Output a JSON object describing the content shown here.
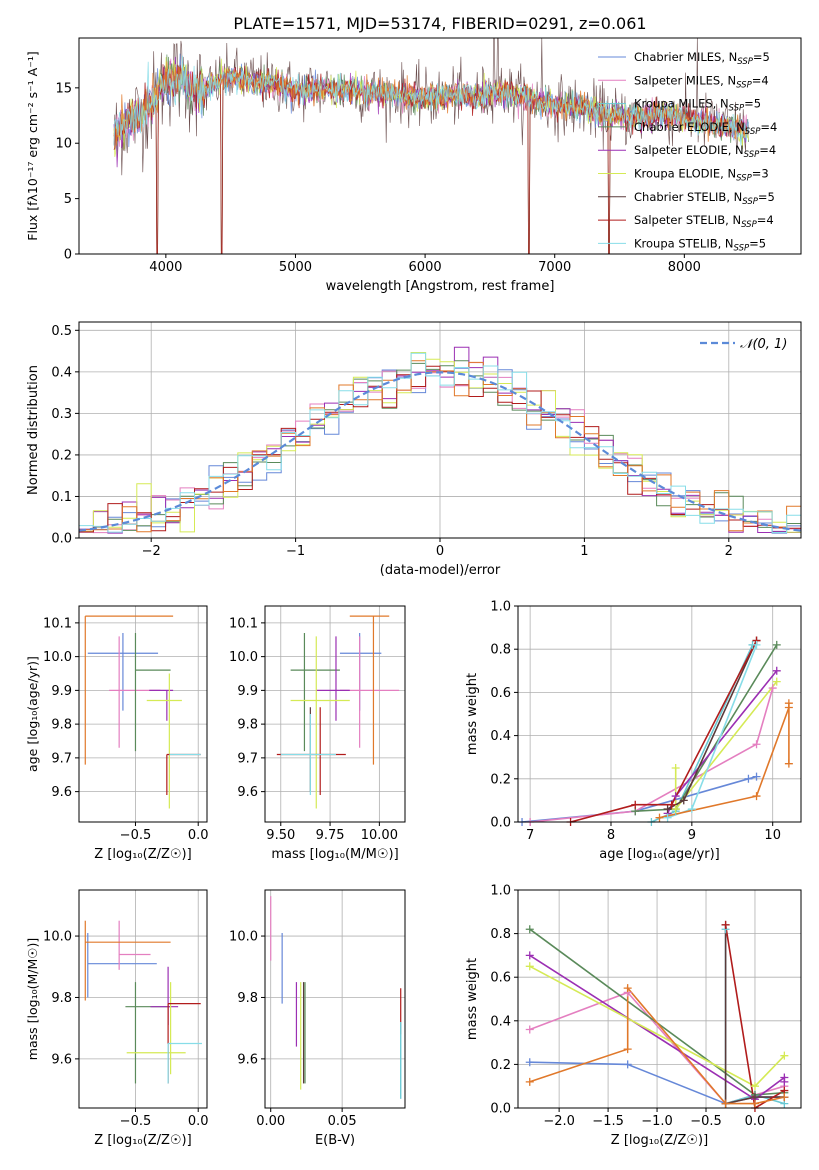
{
  "figure_title": "PLATE=1571, MJD=53174, FIBERID=0291, z=0.061",
  "colors": [
    "#6688d8",
    "#e47fc0",
    "#69c8d3",
    "#5a8a5a",
    "#9b2fb3",
    "#d5ea55",
    "#5a3a3a",
    "#b11c1c",
    "#87dde8"
  ],
  "chart_data": [
    {
      "id": "spectrum",
      "type": "line",
      "xlabel": "wavelength [Angstrom, rest frame]",
      "ylabel": "Flux [fλ10⁻¹⁷ erg cm⁻² s⁻¹ A⁻¹]",
      "xlim": [
        3330,
        8900
      ],
      "ylim": [
        0,
        19.5
      ],
      "xticks": [
        4000,
        5000,
        6000,
        7000,
        8000
      ],
      "yticks": [
        0,
        5,
        10,
        15
      ],
      "grid": false,
      "legend": "top-right",
      "legend_entries": [
        "Chabrier MILES, N_SSP=5",
        "Salpeter MILES, N_SSP=4",
        "Kroupa MILES, N_SSP=5",
        "Chabrier ELODIE, N_SSP=4",
        "Salpeter ELODIE, N_SSP=4",
        "Kroupa ELODIE, N_SSP=3",
        "Chabrier STELIB, N_SSP=5",
        "Salpeter STELIB, N_SSP=4",
        "Kroupa STELIB, N_SSP=5"
      ],
      "legend_labels": [
        {
          "pre": "Chabrier MILES, N",
          "sub": "SSP",
          "post": "=5"
        },
        {
          "pre": "Salpeter MILES, N",
          "sub": "SSP",
          "post": "=4"
        },
        {
          "pre": "Kroupa MILES, N",
          "sub": "SSP",
          "post": "=5"
        },
        {
          "pre": "Chabrier ELODIE, N",
          "sub": "SSP",
          "post": "=4"
        },
        {
          "pre": "Salpeter ELODIE, N",
          "sub": "SSP",
          "post": "=4"
        },
        {
          "pre": "Kroupa ELODIE, N",
          "sub": "SSP",
          "post": "=3"
        },
        {
          "pre": "Chabrier STELIB, N",
          "sub": "SSP",
          "post": "=5"
        },
        {
          "pre": "Salpeter STELIB, N",
          "sub": "SSP",
          "post": "=4"
        },
        {
          "pre": "Kroupa STELIB, N",
          "sub": "SSP",
          "post": "=5"
        }
      ],
      "continuum": [
        [
          3600,
          10.5
        ],
        [
          3700,
          12.0
        ],
        [
          3800,
          12.5
        ],
        [
          3900,
          14.0
        ],
        [
          4000,
          15.5
        ],
        [
          4100,
          16.0
        ],
        [
          4200,
          15.0
        ],
        [
          4300,
          14.8
        ],
        [
          4400,
          15.5
        ],
        [
          4500,
          16.0
        ],
        [
          4600,
          15.8
        ],
        [
          4700,
          15.5
        ],
        [
          4800,
          15.4
        ],
        [
          4900,
          15.2
        ],
        [
          5000,
          14.8
        ],
        [
          5200,
          14.9
        ],
        [
          5400,
          14.8
        ],
        [
          5600,
          14.5
        ],
        [
          5800,
          14.5
        ],
        [
          6000,
          14.0
        ],
        [
          6200,
          14.3
        ],
        [
          6400,
          14.2
        ],
        [
          6600,
          14.7
        ],
        [
          6800,
          14.0
        ],
        [
          7000,
          13.5
        ],
        [
          7200,
          13.2
        ],
        [
          7400,
          12.6
        ],
        [
          7600,
          12.3
        ],
        [
          7800,
          12.7
        ],
        [
          8000,
          12.2
        ],
        [
          8200,
          11.8
        ],
        [
          8400,
          11.3
        ],
        [
          8500,
          11.1
        ]
      ],
      "dips": [
        [
          3934,
          0
        ],
        [
          4430,
          0
        ],
        [
          6800,
          0
        ],
        [
          7420,
          0
        ]
      ],
      "spikes": [
        [
          6530,
          19.5
        ],
        [
          6560,
          19.5
        ],
        [
          6900,
          19.5
        ],
        [
          8100,
          19.5
        ]
      ]
    },
    {
      "id": "residuals",
      "type": "step",
      "xlabel": "(data-model)/error",
      "ylabel": "Normed distribution",
      "xlim": [
        -2.5,
        2.5
      ],
      "ylim": [
        0,
        0.52
      ],
      "xticks": [
        -2,
        -1,
        0,
        1,
        2
      ],
      "xtick_labels": [
        "−2",
        "−1",
        "0",
        "1",
        "2"
      ],
      "yticks": [
        0.0,
        0.1,
        0.2,
        0.3,
        0.4,
        0.5
      ],
      "ytick_labels": [
        "0.0",
        "0.1",
        "0.2",
        "0.3",
        "0.4",
        "0.5"
      ],
      "grid": true,
      "legend": "top-right",
      "legend_entries": [
        "𝒩(0, 1)"
      ],
      "bin_width": 0.1,
      "nbins": 50
    },
    {
      "id": "age_vs_Z",
      "type": "errorbar",
      "xlabel": "Z [log₁₀(Z/Z☉)]",
      "ylabel": "age  [log₁₀(age/yr)]",
      "xlim": [
        -0.95,
        0.07
      ],
      "ylim": [
        9.51,
        10.15
      ],
      "xticks": [
        -0.5,
        0.0
      ],
      "xtick_labels": [
        "−0.5",
        "0.0"
      ],
      "yticks": [
        9.6,
        9.7,
        9.8,
        9.9,
        10.0,
        10.1
      ],
      "ytick_labels": [
        "9.6",
        "9.7",
        "9.8",
        "9.9",
        "10.0",
        "10.1"
      ],
      "grid": true,
      "points": [
        {
          "c": 0,
          "x": -0.6,
          "xe": [
            -0.88,
            -0.32
          ],
          "y": 10.01,
          "ye": [
            9.84,
            10.07
          ]
        },
        {
          "c": 1,
          "x": -0.63,
          "xe": [
            -0.71,
            -0.3
          ],
          "y": 9.9,
          "ye": [
            9.73,
            10.06
          ]
        },
        {
          "c": 3,
          "x": -0.5,
          "xe": [
            -0.5,
            -0.22
          ],
          "y": 9.96,
          "ye": [
            9.72,
            10.07
          ]
        },
        {
          "c": 4,
          "x": -0.25,
          "xe": [
            -0.39,
            -0.2
          ],
          "y": 9.9,
          "ye": [
            9.81,
            9.9
          ]
        },
        {
          "c": 5,
          "x": -0.23,
          "xe": [
            -0.41,
            -0.13
          ],
          "y": 9.87,
          "ye": [
            9.55,
            9.95
          ]
        },
        {
          "c": 7,
          "x": -0.25,
          "xe": [
            -0.25,
            0.02
          ],
          "y": 9.71,
          "ye": [
            9.59,
            9.71
          ]
        },
        {
          "c": 8,
          "x": -0.23,
          "xe": [
            -0.23,
            0.02
          ],
          "y": 9.71,
          "ye": [
            9.71,
            9.71
          ]
        },
        {
          "c": 10,
          "x": -0.9,
          "xe": [
            -0.9,
            -0.2
          ],
          "y": 10.12,
          "ye": [
            9.68,
            10.12
          ]
        }
      ]
    },
    {
      "id": "age_vs_mass",
      "type": "errorbar",
      "xlabel": "mass [log₁₀(M/M☉)]",
      "ylabel": "",
      "xlim": [
        9.42,
        10.13
      ],
      "ylim": [
        9.51,
        10.15
      ],
      "xticks": [
        9.5,
        9.75,
        10.0
      ],
      "xtick_labels": [
        "9.50",
        "9.75",
        "10.00"
      ],
      "yticks": [
        9.6,
        9.7,
        9.8,
        9.9,
        10.0,
        10.1
      ],
      "ytick_labels": [
        "9.6",
        "9.7",
        "9.8",
        "9.9",
        "10.0",
        "10.1"
      ],
      "grid": true,
      "points": [
        {
          "c": 0,
          "x": 9.9,
          "xe": [
            9.8,
            10.01
          ],
          "y": 10.01,
          "ye": [
            9.84,
            10.07
          ]
        },
        {
          "c": 1,
          "x": 9.9,
          "xe": [
            9.8,
            10.1
          ],
          "y": 9.9,
          "ye": [
            9.73,
            10.06
          ]
        },
        {
          "c": 3,
          "x": 9.62,
          "xe": [
            9.55,
            9.8
          ],
          "y": 9.96,
          "ye": [
            9.72,
            10.07
          ]
        },
        {
          "c": 4,
          "x": 9.78,
          "xe": [
            9.68,
            9.85
          ],
          "y": 9.9,
          "ye": [
            9.81,
            10.06
          ]
        },
        {
          "c": 5,
          "x": 9.68,
          "xe": [
            9.55,
            9.85
          ],
          "y": 9.87,
          "ye": [
            9.55,
            10.06
          ]
        },
        {
          "c": 6,
          "x": 9.65,
          "xe": [
            9.65,
            9.65
          ],
          "y": 9.7,
          "ye": [
            9.6,
            9.85
          ]
        },
        {
          "c": 7,
          "x": 9.7,
          "xe": [
            9.48,
            9.83
          ],
          "y": 9.71,
          "ye": [
            9.59,
            9.85
          ]
        },
        {
          "c": 8,
          "x": 9.65,
          "xe": [
            9.5,
            9.78
          ],
          "y": 9.71,
          "ye": [
            9.59,
            9.83
          ]
        },
        {
          "c": 10,
          "x": 9.97,
          "xe": [
            9.85,
            10.05
          ],
          "y": 10.12,
          "ye": [
            9.68,
            10.12
          ]
        }
      ]
    },
    {
      "id": "mass_weight_vs_age",
      "type": "line",
      "xlabel": "age  [log₁₀(age/yr)]",
      "ylabel": "mass weight",
      "xlim": [
        6.85,
        10.35
      ],
      "ylim": [
        0,
        1.0
      ],
      "xticks": [
        7,
        8,
        9,
        10
      ],
      "yticks": [
        0.0,
        0.2,
        0.4,
        0.6,
        0.8,
        1.0
      ],
      "ytick_labels": [
        "0.0",
        "0.2",
        "0.4",
        "0.6",
        "0.8",
        "1.0"
      ],
      "grid": true,
      "series": [
        {
          "c": 0,
          "x": [
            6.9,
            8.3,
            9.7,
            9.8
          ],
          "y": [
            0.0,
            0.05,
            0.2,
            0.21
          ]
        },
        {
          "c": 1,
          "x": 7.0,
          "x_list": [
            7.0,
            8.3,
            9.8,
            10.0
          ],
          "y": [
            0.0,
            0.05,
            0.36,
            0.62
          ]
        },
        {
          "c": 2,
          "x": [
            8.5,
            8.8,
            9.75
          ],
          "y": [
            0.0,
            0.05,
            0.82
          ]
        },
        {
          "c": 3,
          "x": [
            8.3,
            8.8,
            10.05
          ],
          "y": [
            0.05,
            0.06,
            0.82
          ]
        },
        {
          "c": 4,
          "x": [
            8.7,
            8.8,
            10.05
          ],
          "y": [
            0.04,
            0.12,
            0.7
          ]
        },
        {
          "c": 5,
          "x": [
            8.8,
            8.8,
            10.05
          ],
          "y": [
            0.25,
            0.06,
            0.65
          ]
        },
        {
          "c": 6,
          "x": [
            8.7,
            8.9,
            9.8
          ],
          "y": [
            0.06,
            0.1,
            0.84
          ]
        },
        {
          "c": 7,
          "x": [
            7.5,
            8.3,
            8.75,
            9.8
          ],
          "y": [
            0.0,
            0.08,
            0.08,
            0.84
          ]
        },
        {
          "c": 8,
          "x": [
            8.7,
            9.0,
            9.8
          ],
          "y": [
            0.02,
            0.06,
            0.82
          ]
        },
        {
          "c": 10,
          "x": [
            8.6,
            9.8,
            10.2,
            10.2,
            10.2
          ],
          "y": [
            0.02,
            0.12,
            0.53,
            0.27,
            0.55
          ]
        }
      ]
    },
    {
      "id": "mass_vs_Z",
      "type": "errorbar",
      "xlabel": "Z [log₁₀(Z/Z☉)]",
      "ylabel": "mass [log₁₀(M/M☉)]",
      "xlim": [
        -0.95,
        0.07
      ],
      "ylim": [
        9.44,
        10.15
      ],
      "xticks": [
        -0.5,
        0.0
      ],
      "xtick_labels": [
        "−0.5",
        "0.0"
      ],
      "yticks": [
        9.6,
        9.8,
        10.0
      ],
      "ytick_labels": [
        "9.6",
        "9.8",
        "10.0"
      ],
      "grid": true,
      "points": [
        {
          "c": 0,
          "x": -0.88,
          "xe": [
            -0.88,
            -0.33
          ],
          "y": 9.91,
          "ye": [
            9.8,
            10.01
          ]
        },
        {
          "c": 1,
          "x": -0.63,
          "xe": [
            -0.63,
            -0.38
          ],
          "y": 9.94,
          "ye": [
            9.89,
            10.05
          ]
        },
        {
          "c": 3,
          "x": -0.5,
          "xe": [
            -0.58,
            -0.22
          ],
          "y": 9.77,
          "ye": [
            9.52,
            9.85
          ]
        },
        {
          "c": 4,
          "x": -0.24,
          "xe": [
            -0.38,
            -0.16
          ],
          "y": 9.77,
          "ye": [
            9.71,
            9.9
          ]
        },
        {
          "c": 5,
          "x": -0.22,
          "xe": [
            -0.57,
            -0.1
          ],
          "y": 9.62,
          "ye": [
            9.55,
            9.85
          ]
        },
        {
          "c": 7,
          "x": -0.24,
          "xe": [
            -0.24,
            0.02
          ],
          "y": 9.78,
          "ye": [
            9.52,
            9.78
          ]
        },
        {
          "c": 8,
          "x": -0.24,
          "xe": [
            -0.24,
            0.03
          ],
          "y": 9.65,
          "ye": [
            9.52,
            9.65
          ]
        },
        {
          "c": 10,
          "x": -0.9,
          "xe": [
            -0.9,
            -0.22
          ],
          "y": 9.98,
          "ye": [
            9.79,
            10.05
          ]
        }
      ]
    },
    {
      "id": "mass_vs_ebv",
      "type": "errorbar",
      "xlabel": "E(B-V)",
      "ylabel": "",
      "xlim": [
        -0.004,
        0.094
      ],
      "ylim": [
        9.44,
        10.15
      ],
      "xticks": [
        0.0,
        0.05
      ],
      "xtick_labels": [
        "0.00",
        "0.05"
      ],
      "yticks": [
        9.6,
        9.8,
        10.0
      ],
      "ytick_labels": [
        "9.6",
        "9.8",
        "10.0"
      ],
      "grid": true,
      "points": [
        {
          "c": 1,
          "x": 0.0,
          "y": 10.05,
          "ye": [
            9.92,
            10.13
          ]
        },
        {
          "c": 0,
          "x": 0.008,
          "y": 9.9,
          "ye": [
            9.78,
            10.01
          ]
        },
        {
          "c": 4,
          "x": 0.018,
          "y": 9.75,
          "ye": [
            9.64,
            9.85
          ]
        },
        {
          "c": 5,
          "x": 0.021,
          "y": 9.65,
          "ye": [
            9.5,
            9.85
          ]
        },
        {
          "c": 6,
          "x": 0.023,
          "y": 9.68,
          "ye": [
            9.52,
            9.85
          ]
        },
        {
          "c": 3,
          "x": 0.024,
          "y": 9.7,
          "ye": [
            9.52,
            9.85
          ]
        },
        {
          "c": 7,
          "x": 0.091,
          "y": 9.78,
          "ye": [
            9.68,
            9.83
          ]
        },
        {
          "c": 8,
          "x": 0.091,
          "y": 9.6,
          "ye": [
            9.47,
            9.72
          ]
        },
        {
          "c": 2,
          "x": 0.091,
          "y": 9.6,
          "ye": [
            9.47,
            9.72
          ]
        }
      ]
    },
    {
      "id": "mass_weight_vs_Z",
      "type": "line",
      "xlabel": "Z [log₁₀(Z/Z☉)]",
      "ylabel": "mass weight",
      "xlim": [
        -2.42,
        0.47
      ],
      "ylim": [
        0,
        1.0
      ],
      "xticks": [
        -2.0,
        -1.5,
        -1.0,
        -0.5,
        0.0
      ],
      "xtick_labels": [
        "−2.0",
        "−1.5",
        "−1.0",
        "−0.5",
        "0.0"
      ],
      "yticks": [
        0.0,
        0.2,
        0.4,
        0.6,
        0.8,
        1.0
      ],
      "ytick_labels": [
        "0.0",
        "0.2",
        "0.4",
        "0.6",
        "0.8",
        "1.0"
      ],
      "grid": true,
      "series": [
        {
          "c": 0,
          "x": [
            -2.3,
            -1.3,
            -0.3,
            0.0,
            0.3
          ],
          "y": [
            0.21,
            0.2,
            0.02,
            0.05,
            0.05
          ]
        },
        {
          "c": 1,
          "x": [
            -2.3,
            -1.3,
            -0.3,
            0.3
          ],
          "y": [
            0.36,
            0.53,
            0.02,
            0.1
          ]
        },
        {
          "c": 2,
          "x": [
            -0.3,
            -0.3,
            0.0,
            0.3
          ],
          "y": [
            0.82,
            0.02,
            0.06,
            0.02
          ]
        },
        {
          "c": 3,
          "x": [
            -2.3,
            0.0,
            0.3
          ],
          "y": [
            0.82,
            0.06,
            0.07
          ]
        },
        {
          "c": 4,
          "x": [
            -2.3,
            0.0,
            0.3,
            0.3
          ],
          "y": [
            0.7,
            0.04,
            0.14,
            0.12
          ]
        },
        {
          "c": 5,
          "x": [
            -2.3,
            0.0,
            0.3
          ],
          "y": [
            0.65,
            0.1,
            0.24
          ]
        },
        {
          "c": 6,
          "x": [
            -0.3,
            -0.3,
            0.0,
            0.3
          ],
          "y": [
            0.84,
            0.02,
            0.05,
            0.05
          ]
        },
        {
          "c": 7,
          "x": [
            -0.3,
            0.0,
            0.3
          ],
          "y": [
            0.84,
            0.0,
            0.08
          ]
        },
        {
          "c": 10,
          "x": [
            -2.3,
            -1.3,
            -1.3,
            -0.3,
            0.0,
            0.3
          ],
          "y": [
            0.12,
            0.27,
            0.55,
            0.02,
            0.02,
            0.05
          ]
        }
      ]
    }
  ]
}
